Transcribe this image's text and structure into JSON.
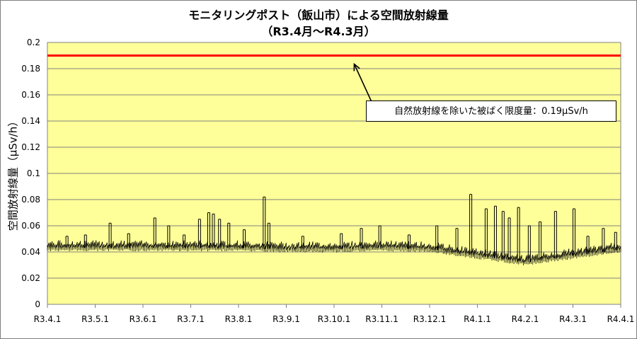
{
  "chart_data": {
    "type": "line",
    "title": "モニタリングポスト（飯山市）による空間放射線量",
    "subtitle": "（R3.4月～R4.3月）",
    "ylabel": "空間放射線量（μSv/h）",
    "xlabel": "",
    "ylim": [
      0,
      0.2
    ],
    "yticks": [
      "0",
      "0.02",
      "0.04",
      "0.06",
      "0.08",
      "0.1",
      "0.12",
      "0.14",
      "0.16",
      "0.18",
      "0.2"
    ],
    "categories": [
      "R3.4.1",
      "R3.5.1",
      "R3.6.1",
      "R3.7.1",
      "R3.8.1",
      "R3.9.1",
      "R3.10.1",
      "R3.11.1",
      "R3.12.1",
      "R4.1.1",
      "R4.2.1",
      "R4.3.1",
      "R4.4.1"
    ],
    "grid": true,
    "plot_background": "#ffff99",
    "series": [
      {
        "name": "",
        "color": "#000000",
        "baseline_by_month": [
          0.043,
          0.043,
          0.043,
          0.043,
          0.043,
          0.042,
          0.042,
          0.043,
          0.042,
          0.037,
          0.032,
          0.037,
          0.042
        ],
        "peaks": [
          {
            "x": "R3.4.13",
            "y": 0.052
          },
          {
            "x": "R3.4.25",
            "y": 0.053
          },
          {
            "x": "R3.5.10",
            "y": 0.062
          },
          {
            "x": "R3.5.22",
            "y": 0.054
          },
          {
            "x": "R3.6.8",
            "y": 0.066
          },
          {
            "x": "R3.6.17",
            "y": 0.06
          },
          {
            "x": "R3.6.27",
            "y": 0.053
          },
          {
            "x": "R3.7.6",
            "y": 0.065
          },
          {
            "x": "R3.7.12",
            "y": 0.07
          },
          {
            "x": "R3.7.15",
            "y": 0.069
          },
          {
            "x": "R3.7.19",
            "y": 0.065
          },
          {
            "x": "R3.7.25",
            "y": 0.062
          },
          {
            "x": "R3.8.4",
            "y": 0.057
          },
          {
            "x": "R3.8.17",
            "y": 0.082
          },
          {
            "x": "R3.8.20",
            "y": 0.062
          },
          {
            "x": "R3.9.11",
            "y": 0.052
          },
          {
            "x": "R3.10.5",
            "y": 0.054
          },
          {
            "x": "R3.10.18",
            "y": 0.058
          },
          {
            "x": "R3.10.30",
            "y": 0.06
          },
          {
            "x": "R3.11.18",
            "y": 0.053
          },
          {
            "x": "R3.12.5",
            "y": 0.06
          },
          {
            "x": "R3.12.18",
            "y": 0.058
          },
          {
            "x": "R3.12.27",
            "y": 0.084
          },
          {
            "x": "R4.1.6",
            "y": 0.073
          },
          {
            "x": "R4.1.12",
            "y": 0.075
          },
          {
            "x": "R4.1.17",
            "y": 0.071
          },
          {
            "x": "R4.1.21",
            "y": 0.066
          },
          {
            "x": "R4.1.27",
            "y": 0.074
          },
          {
            "x": "R4.2.3",
            "y": 0.06
          },
          {
            "x": "R4.2.10",
            "y": 0.063
          },
          {
            "x": "R4.2.20",
            "y": 0.071
          },
          {
            "x": "R4.3.1",
            "y": 0.073
          },
          {
            "x": "R4.3.10",
            "y": 0.052
          },
          {
            "x": "R4.3.20",
            "y": 0.058
          },
          {
            "x": "R4.3.28",
            "y": 0.055
          }
        ]
      }
    ],
    "reference_line": {
      "y": 0.19,
      "color": "#ff0000"
    },
    "annotation": {
      "text": "自然放射線を除いた被ばく限度量：0.19μSv/h",
      "arrow_target_x": "R3.11.1"
    }
  }
}
